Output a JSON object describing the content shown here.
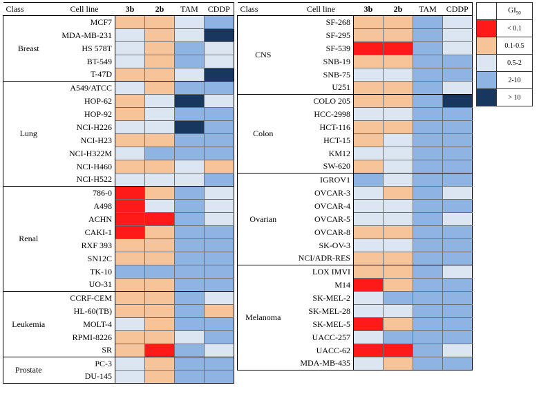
{
  "colors": {
    "lt0.1": "#ff1a1a",
    "0.1-0.5": "#f7c49a",
    "0.5-2": "#dce6f2",
    "2-10": "#8eb4e3",
    "gt10": "#17375e"
  },
  "headers": {
    "class": "Class",
    "cell_line": "Cell line",
    "c3b": "3b",
    "c2b": "2b",
    "tam": "TAM",
    "cddp": "CDDP"
  },
  "legend": {
    "title": "GI",
    "title_sub": "50",
    "items": [
      {
        "key": "lt0.1",
        "label": "< 0.1"
      },
      {
        "key": "0.1-0.5",
        "label": "0.1-0.5"
      },
      {
        "key": "0.5-2",
        "label": "0.5-2"
      },
      {
        "key": "2-10",
        "label": "2-10"
      },
      {
        "key": "gt10",
        "label": "> 10"
      }
    ]
  },
  "left_groups": [
    {
      "class": "Breast",
      "rows": [
        {
          "line": "MCF7",
          "v": [
            "0.1-0.5",
            "0.1-0.5",
            "0.5-2",
            "2-10"
          ]
        },
        {
          "line": "MDA-MB-231",
          "v": [
            "0.5-2",
            "0.1-0.5",
            "0.5-2",
            "gt10"
          ]
        },
        {
          "line": "HS 578T",
          "v": [
            "0.5-2",
            "0.1-0.5",
            "2-10",
            "0.5-2"
          ]
        },
        {
          "line": "BT-549",
          "v": [
            "0.5-2",
            "0.1-0.5",
            "2-10",
            "0.5-2"
          ]
        },
        {
          "line": "T-47D",
          "v": [
            "0.1-0.5",
            "0.1-0.5",
            "0.5-2",
            "gt10"
          ]
        }
      ]
    },
    {
      "class": "Lung",
      "rows": [
        {
          "line": "A549/ATCC",
          "v": [
            "0.5-2",
            "0.1-0.5",
            "2-10",
            "2-10"
          ]
        },
        {
          "line": "HOP-62",
          "v": [
            "0.1-0.5",
            "0.5-2",
            "gt10",
            "0.5-2"
          ]
        },
        {
          "line": "HOP-92",
          "v": [
            "0.1-0.5",
            "0.5-2",
            "2-10",
            "2-10"
          ]
        },
        {
          "line": "NCI-H226",
          "v": [
            "0.5-2",
            "0.5-2",
            "gt10",
            "2-10"
          ]
        },
        {
          "line": "NCI-H23",
          "v": [
            "0.1-0.5",
            "0.1-0.5",
            "2-10",
            "2-10"
          ]
        },
        {
          "line": "NCI-H322M",
          "v": [
            "0.5-2",
            "2-10",
            "2-10",
            "2-10"
          ]
        },
        {
          "line": "NCI-H460",
          "v": [
            "0.1-0.5",
            "0.1-0.5",
            "0.5-2",
            "0.1-0.5"
          ]
        },
        {
          "line": "NCI-H522",
          "v": [
            "0.5-2",
            "0.5-2",
            "0.5-2",
            "2-10"
          ]
        }
      ]
    },
    {
      "class": "Renal",
      "rows": [
        {
          "line": "786-0",
          "v": [
            "lt0.1",
            "0.1-0.5",
            "2-10",
            "0.5-2"
          ]
        },
        {
          "line": "A498",
          "v": [
            "lt0.1",
            "0.5-2",
            "2-10",
            "0.5-2"
          ]
        },
        {
          "line": "ACHN",
          "v": [
            "lt0.1",
            "lt0.1",
            "2-10",
            "0.5-2"
          ]
        },
        {
          "line": "CAKI-1",
          "v": [
            "lt0.1",
            "0.1-0.5",
            "2-10",
            "2-10"
          ]
        },
        {
          "line": "RXF 393",
          "v": [
            "0.1-0.5",
            "0.1-0.5",
            "2-10",
            "2-10"
          ]
        },
        {
          "line": "SN12C",
          "v": [
            "0.1-0.5",
            "0.1-0.5",
            "2-10",
            "2-10"
          ]
        },
        {
          "line": "TK-10",
          "v": [
            "2-10",
            "2-10",
            "2-10",
            "2-10"
          ]
        },
        {
          "line": "UO-31",
          "v": [
            "0.1-0.5",
            "0.1-0.5",
            "2-10",
            "2-10"
          ]
        }
      ]
    },
    {
      "class": "Leukemia",
      "rows": [
        {
          "line": "CCRF-CEM",
          "v": [
            "0.1-0.5",
            "0.1-0.5",
            "2-10",
            "0.5-2"
          ]
        },
        {
          "line": "HL-60(TB)",
          "v": [
            "0.1-0.5",
            "0.1-0.5",
            "2-10",
            "0.1-0.5"
          ]
        },
        {
          "line": "MOLT-4",
          "v": [
            "0.5-2",
            "0.1-0.5",
            "2-10",
            "2-10"
          ]
        },
        {
          "line": "RPMI-8226",
          "v": [
            "0.1-0.5",
            "0.1-0.5",
            "0.5-2",
            "2-10"
          ]
        },
        {
          "line": "SR",
          "v": [
            "0.1-0.5",
            "lt0.1",
            "2-10",
            "0.5-2"
          ]
        }
      ]
    },
    {
      "class": "Prostate",
      "rows": [
        {
          "line": "PC-3",
          "v": [
            "0.5-2",
            "0.1-0.5",
            "2-10",
            "2-10"
          ]
        },
        {
          "line": "DU-145",
          "v": [
            "0.5-2",
            "0.1-0.5",
            "2-10",
            "2-10"
          ]
        }
      ]
    }
  ],
  "right_groups": [
    {
      "class": "CNS",
      "rows": [
        {
          "line": "SF-268",
          "v": [
            "0.1-0.5",
            "0.1-0.5",
            "2-10",
            "0.5-2"
          ]
        },
        {
          "line": "SF-295",
          "v": [
            "0.1-0.5",
            "0.1-0.5",
            "2-10",
            "0.5-2"
          ]
        },
        {
          "line": "SF-539",
          "v": [
            "lt0.1",
            "lt0.1",
            "2-10",
            "0.5-2"
          ]
        },
        {
          "line": "SNB-19",
          "v": [
            "0.1-0.5",
            "0.1-0.5",
            "2-10",
            "2-10"
          ]
        },
        {
          "line": "SNB-75",
          "v": [
            "0.5-2",
            "0.5-2",
            "2-10",
            "2-10"
          ]
        },
        {
          "line": "U251",
          "v": [
            "0.1-0.5",
            "0.1-0.5",
            "2-10",
            "0.5-2"
          ]
        }
      ]
    },
    {
      "class": "Colon",
      "rows": [
        {
          "line": "COLO 205",
          "v": [
            "0.1-0.5",
            "0.1-0.5",
            "2-10",
            "gt10"
          ]
        },
        {
          "line": "HCC-2998",
          "v": [
            "0.5-2",
            "0.5-2",
            "2-10",
            "2-10"
          ]
        },
        {
          "line": "HCT-116",
          "v": [
            "0.1-0.5",
            "0.1-0.5",
            "2-10",
            "2-10"
          ]
        },
        {
          "line": "HCT-15",
          "v": [
            "0.1-0.5",
            "0.5-2",
            "2-10",
            "2-10"
          ]
        },
        {
          "line": "KM12",
          "v": [
            "0.5-2",
            "0.5-2",
            "2-10",
            "2-10"
          ]
        },
        {
          "line": "SW-620",
          "v": [
            "0.1-0.5",
            "0.5-2",
            "2-10",
            "2-10"
          ]
        }
      ]
    },
    {
      "class": "Ovarian",
      "rows": [
        {
          "line": "IGROV1",
          "v": [
            "2-10",
            "0.5-2",
            "2-10",
            "2-10"
          ]
        },
        {
          "line": "OVCAR-3",
          "v": [
            "0.5-2",
            "0.1-0.5",
            "2-10",
            "0.5-2"
          ]
        },
        {
          "line": "OVCAR-4",
          "v": [
            "0.5-2",
            "0.5-2",
            "2-10",
            "2-10"
          ]
        },
        {
          "line": "OVCAR-5",
          "v": [
            "0.5-2",
            "0.5-2",
            "2-10",
            "0.5-2"
          ]
        },
        {
          "line": "OVCAR-8",
          "v": [
            "0.1-0.5",
            "0.1-0.5",
            "2-10",
            "2-10"
          ]
        },
        {
          "line": "SK-OV-3",
          "v": [
            "0.5-2",
            "0.5-2",
            "2-10",
            "2-10"
          ]
        },
        {
          "line": "NCI/ADR-RES",
          "v": [
            "0.1-0.5",
            "0.1-0.5",
            "2-10",
            "2-10"
          ]
        }
      ]
    },
    {
      "class": "Melanoma",
      "rows": [
        {
          "line": "LOX IMVI",
          "v": [
            "0.1-0.5",
            "0.1-0.5",
            "2-10",
            "0.5-2"
          ]
        },
        {
          "line": "M14",
          "v": [
            "lt0.1",
            "0.1-0.5",
            "2-10",
            "2-10"
          ]
        },
        {
          "line": "SK-MEL-2",
          "v": [
            "0.5-2",
            "2-10",
            "2-10",
            "2-10"
          ]
        },
        {
          "line": "SK-MEL-28",
          "v": [
            "0.5-2",
            "0.5-2",
            "2-10",
            "2-10"
          ]
        },
        {
          "line": "SK-MEL-5",
          "v": [
            "lt0.1",
            "0.1-0.5",
            "2-10",
            "2-10"
          ]
        },
        {
          "line": "UACC-257",
          "v": [
            "0.5-2",
            "2-10",
            "2-10",
            "2-10"
          ]
        },
        {
          "line": "UACC-62",
          "v": [
            "lt0.1",
            "lt0.1",
            "2-10",
            "0.5-2"
          ]
        },
        {
          "line": "MDA-MB-435",
          "v": [
            "0.5-2",
            "0.1-0.5",
            "2-10",
            "2-10"
          ]
        }
      ]
    }
  ]
}
